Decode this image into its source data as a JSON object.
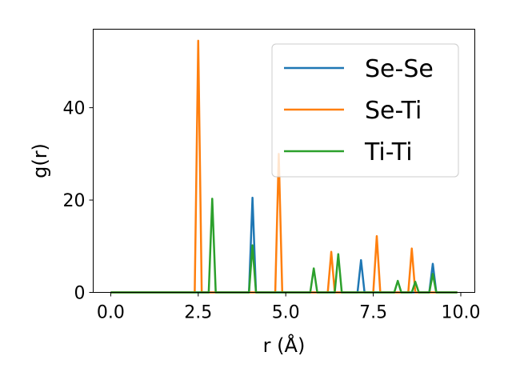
{
  "chart_data": {
    "type": "line",
    "title": "",
    "xlabel": "r (Å)",
    "ylabel": "g(r)",
    "xlim": [
      -0.5,
      10.4
    ],
    "ylim": [
      0,
      57
    ],
    "xticks": [
      "0.0",
      "2.5",
      "5.0",
      "7.5",
      "10.0"
    ],
    "yticks": [
      "0",
      "20",
      "40"
    ],
    "grid": false,
    "legend_position": "top-right",
    "series": [
      {
        "name": "Se-Se",
        "color": "#1f77b4",
        "x": [
          0.0,
          3.95,
          4.05,
          4.15,
          7.05,
          7.15,
          7.25,
          9.1,
          9.2,
          9.3,
          9.9
        ],
        "y": [
          0,
          0,
          20.5,
          0,
          0,
          7.0,
          0,
          0,
          6.2,
          0,
          0
        ]
      },
      {
        "name": "Se-Ti",
        "color": "#ff7f0e",
        "x": [
          0.0,
          2.4,
          2.5,
          2.6,
          4.7,
          4.8,
          4.9,
          6.2,
          6.3,
          6.4,
          7.5,
          7.6,
          7.7,
          8.5,
          8.6,
          8.7,
          9.9
        ],
        "y": [
          0,
          0,
          54.5,
          0,
          0,
          30.0,
          0,
          0,
          8.8,
          0,
          0,
          12.2,
          0,
          0,
          9.5,
          0,
          0
        ]
      },
      {
        "name": "Ti-Ti",
        "color": "#2ca02c",
        "x": [
          0.0,
          2.8,
          2.9,
          3.0,
          3.95,
          4.05,
          4.15,
          5.7,
          5.8,
          5.9,
          6.4,
          6.5,
          6.6,
          8.1,
          8.2,
          8.3,
          8.6,
          8.7,
          8.8,
          9.1,
          9.2,
          9.3,
          9.9
        ],
        "y": [
          0,
          0,
          20.3,
          0,
          0,
          10.2,
          0,
          0,
          5.2,
          0,
          0,
          8.3,
          0,
          0,
          2.5,
          0,
          0,
          2.3,
          0,
          0,
          4.0,
          0,
          0
        ]
      }
    ]
  }
}
